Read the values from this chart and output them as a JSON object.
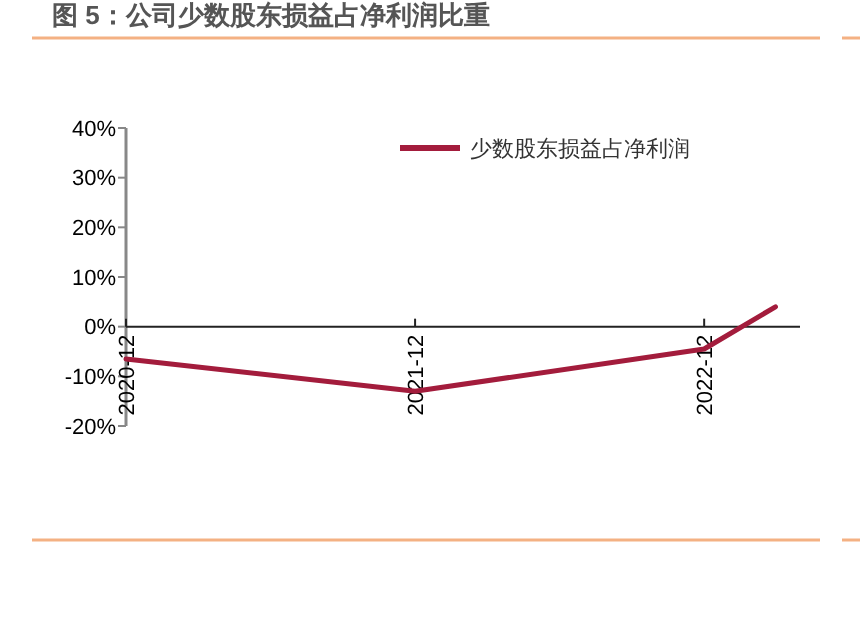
{
  "chart_data": {
    "type": "line",
    "title": "图 5：公司少数股东损益占净利润比重",
    "x": [
      "2020-12",
      "2021-12",
      "2022-12",
      "2023-03"
    ],
    "series": [
      {
        "name": "少数股东损益占净利润",
        "color": "#a31c3c",
        "values": [
          -6.5,
          -13,
          -4.5,
          4
        ]
      }
    ],
    "xlim": [
      "2020-12",
      "2023-04"
    ],
    "xticks": [
      {
        "value": "2020-12",
        "label": "2020-12"
      },
      {
        "value": "2021-12",
        "label": "2021-12"
      },
      {
        "value": "2022-12",
        "label": "2022-12"
      }
    ],
    "ylim": [
      -20,
      40
    ],
    "yticks": [
      {
        "value": 40,
        "label": "40%"
      },
      {
        "value": 30,
        "label": "30%"
      },
      {
        "value": 20,
        "label": "20%"
      },
      {
        "value": 10,
        "label": "10%"
      },
      {
        "value": 0,
        "label": "0%"
      },
      {
        "value": -10,
        "label": "-10%"
      },
      {
        "value": -20,
        "label": "-20%"
      }
    ],
    "grid": false,
    "legend": "top right",
    "marker": "none",
    "line_style": "solid"
  }
}
